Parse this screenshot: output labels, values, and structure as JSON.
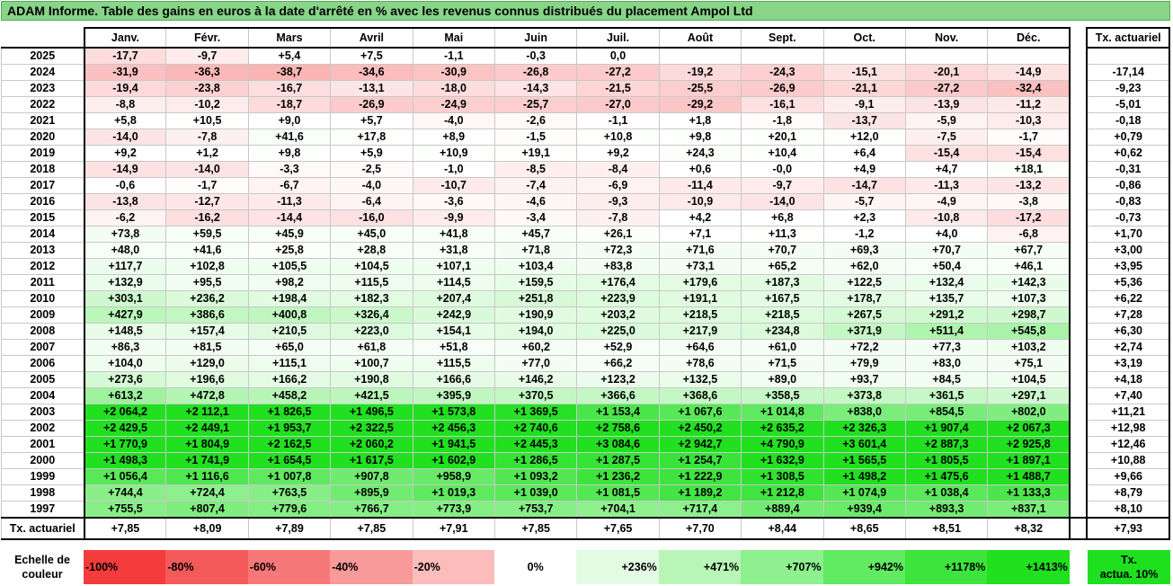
{
  "title": "ADAM Informe. Table des gains en euros à la date d'arrêté en % avec les revenus connus distribués du placement Ampol Ltd",
  "months": [
    "Janv.",
    "Févr.",
    "Mars",
    "Avril",
    "Mai",
    "Juin",
    "Juil.",
    "Août",
    "Sept.",
    "Oct.",
    "Nov.",
    "Déc."
  ],
  "rate_header": "Tx. actuariel",
  "rows": [
    {
      "year": "2025",
      "values": [
        "-17,7",
        "-9,7",
        "+5,4",
        "+7,5",
        "-1,1",
        "-0,3",
        "0,0",
        "",
        "",
        "",
        "",
        ""
      ],
      "rate": ""
    },
    {
      "year": "2024",
      "values": [
        "-31,9",
        "-36,3",
        "-38,7",
        "-34,6",
        "-30,9",
        "-26,8",
        "-27,2",
        "-19,2",
        "-24,3",
        "-15,1",
        "-20,1",
        "-14,9"
      ],
      "rate": "-17,14"
    },
    {
      "year": "2023",
      "values": [
        "-19,4",
        "-23,8",
        "-16,7",
        "-13,1",
        "-18,0",
        "-14,3",
        "-21,5",
        "-25,5",
        "-26,9",
        "-21,1",
        "-27,2",
        "-32,4"
      ],
      "rate": "-9,23"
    },
    {
      "year": "2022",
      "values": [
        "-8,8",
        "-10,2",
        "-18,7",
        "-26,9",
        "-24,9",
        "-25,7",
        "-27,0",
        "-29,2",
        "-16,1",
        "-9,1",
        "-13,9",
        "-11,2"
      ],
      "rate": "-5,01"
    },
    {
      "year": "2021",
      "values": [
        "+5,8",
        "+10,5",
        "+9,0",
        "+5,7",
        "-4,0",
        "-2,6",
        "-1,1",
        "+1,8",
        "-1,8",
        "-13,7",
        "-5,9",
        "-10,3"
      ],
      "rate": "-0,18"
    },
    {
      "year": "2020",
      "values": [
        "-14,0",
        "-7,8",
        "+41,6",
        "+17,8",
        "+8,9",
        "-1,5",
        "+10,8",
        "+9,8",
        "+20,1",
        "+12,0",
        "-7,5",
        "-1,7"
      ],
      "rate": "+0,79"
    },
    {
      "year": "2019",
      "values": [
        "+9,2",
        "+1,2",
        "+9,8",
        "+5,9",
        "+10,9",
        "+19,1",
        "+9,2",
        "+24,3",
        "+10,4",
        "+6,4",
        "-15,4",
        "-15,4"
      ],
      "rate": "+0,62"
    },
    {
      "year": "2018",
      "values": [
        "-14,9",
        "-14,0",
        "-3,3",
        "-2,5",
        "-1,0",
        "-8,5",
        "-8,4",
        "+0,6",
        "-0,0",
        "+4,9",
        "+4,7",
        "+18,1"
      ],
      "rate": "-0,31"
    },
    {
      "year": "2017",
      "values": [
        "-0,6",
        "-1,7",
        "-6,7",
        "-4,0",
        "-10,7",
        "-7,4",
        "-6,9",
        "-11,4",
        "-9,7",
        "-14,7",
        "-11,3",
        "-13,2"
      ],
      "rate": "-0,86"
    },
    {
      "year": "2016",
      "values": [
        "-13,8",
        "-12,7",
        "-11,3",
        "-6,4",
        "-3,6",
        "-4,6",
        "-9,3",
        "-10,9",
        "-14,0",
        "-5,7",
        "-4,9",
        "-3,8"
      ],
      "rate": "-0,83"
    },
    {
      "year": "2015",
      "values": [
        "-6,2",
        "-16,2",
        "-14,4",
        "-16,0",
        "-9,9",
        "-3,4",
        "-7,8",
        "+4,2",
        "+6,8",
        "+2,3",
        "-10,8",
        "-17,2"
      ],
      "rate": "-0,73"
    },
    {
      "year": "2014",
      "values": [
        "+73,8",
        "+59,5",
        "+45,9",
        "+45,0",
        "+41,8",
        "+45,7",
        "+26,1",
        "+7,1",
        "+11,3",
        "-1,2",
        "+4,0",
        "-6,8"
      ],
      "rate": "+1,70"
    },
    {
      "year": "2013",
      "values": [
        "+48,0",
        "+41,6",
        "+25,8",
        "+28,8",
        "+31,8",
        "+71,8",
        "+72,3",
        "+71,6",
        "+70,7",
        "+69,3",
        "+70,7",
        "+67,7"
      ],
      "rate": "+3,00"
    },
    {
      "year": "2012",
      "values": [
        "+117,7",
        "+102,8",
        "+105,5",
        "+104,5",
        "+107,1",
        "+103,4",
        "+83,8",
        "+73,1",
        "+65,2",
        "+62,0",
        "+50,4",
        "+46,1"
      ],
      "rate": "+3,95"
    },
    {
      "year": "2011",
      "values": [
        "+132,9",
        "+95,5",
        "+98,2",
        "+115,5",
        "+114,5",
        "+159,5",
        "+176,4",
        "+179,6",
        "+187,3",
        "+122,5",
        "+132,4",
        "+142,3"
      ],
      "rate": "+5,36"
    },
    {
      "year": "2010",
      "values": [
        "+303,1",
        "+236,2",
        "+198,4",
        "+182,3",
        "+207,4",
        "+251,8",
        "+223,9",
        "+191,1",
        "+167,5",
        "+178,7",
        "+135,7",
        "+107,3"
      ],
      "rate": "+6,22"
    },
    {
      "year": "2009",
      "values": [
        "+427,9",
        "+386,6",
        "+400,8",
        "+326,4",
        "+242,9",
        "+190,9",
        "+203,2",
        "+218,5",
        "+218,5",
        "+267,5",
        "+291,2",
        "+298,7"
      ],
      "rate": "+7,28"
    },
    {
      "year": "2008",
      "values": [
        "+148,5",
        "+157,4",
        "+210,5",
        "+223,0",
        "+154,1",
        "+194,0",
        "+225,0",
        "+217,9",
        "+234,8",
        "+371,9",
        "+511,4",
        "+545,8"
      ],
      "rate": "+6,30"
    },
    {
      "year": "2007",
      "values": [
        "+86,3",
        "+81,5",
        "+65,0",
        "+61,8",
        "+51,8",
        "+60,2",
        "+52,9",
        "+64,6",
        "+61,0",
        "+72,2",
        "+77,3",
        "+103,2"
      ],
      "rate": "+2,74"
    },
    {
      "year": "2006",
      "values": [
        "+104,0",
        "+129,0",
        "+115,1",
        "+100,7",
        "+115,5",
        "+77,0",
        "+66,2",
        "+78,6",
        "+71,5",
        "+79,9",
        "+83,0",
        "+75,1"
      ],
      "rate": "+3,19"
    },
    {
      "year": "2005",
      "values": [
        "+273,6",
        "+196,6",
        "+166,2",
        "+190,8",
        "+166,6",
        "+146,2",
        "+123,2",
        "+132,5",
        "+89,0",
        "+93,7",
        "+84,5",
        "+104,5"
      ],
      "rate": "+4,18"
    },
    {
      "year": "2004",
      "values": [
        "+613,2",
        "+472,8",
        "+458,2",
        "+421,5",
        "+395,9",
        "+370,5",
        "+366,6",
        "+368,6",
        "+358,5",
        "+373,8",
        "+361,5",
        "+297,1"
      ],
      "rate": "+7,40"
    },
    {
      "year": "2003",
      "values": [
        "+2 064,2",
        "+2 112,1",
        "+1 826,5",
        "+1 496,5",
        "+1 573,8",
        "+1 369,5",
        "+1 153,4",
        "+1 067,6",
        "+1 014,8",
        "+838,0",
        "+854,5",
        "+802,0"
      ],
      "rate": "+11,21"
    },
    {
      "year": "2002",
      "values": [
        "+2 429,5",
        "+2 449,1",
        "+1 953,7",
        "+2 322,5",
        "+2 456,3",
        "+2 740,6",
        "+2 758,6",
        "+2 450,2",
        "+2 635,2",
        "+2 326,3",
        "+1 907,4",
        "+2 067,3"
      ],
      "rate": "+12,98"
    },
    {
      "year": "2001",
      "values": [
        "+1 770,9",
        "+1 804,9",
        "+2 162,5",
        "+2 060,2",
        "+1 941,5",
        "+2 445,3",
        "+3 084,6",
        "+2 942,7",
        "+4 790,9",
        "+3 601,4",
        "+2 887,3",
        "+2 925,8"
      ],
      "rate": "+12,46"
    },
    {
      "year": "2000",
      "values": [
        "+1 498,3",
        "+1 741,9",
        "+1 654,5",
        "+1 617,5",
        "+1 602,9",
        "+1 286,5",
        "+1 287,5",
        "+1 254,7",
        "+1 632,9",
        "+1 565,5",
        "+1 805,5",
        "+1 897,1"
      ],
      "rate": "+10,88"
    },
    {
      "year": "1999",
      "values": [
        "+1 056,4",
        "+1 116,6",
        "+1 007,8",
        "+907,8",
        "+958,9",
        "+1 093,2",
        "+1 236,2",
        "+1 222,9",
        "+1 308,5",
        "+1 498,2",
        "+1 475,6",
        "+1 488,7"
      ],
      "rate": "+9,66"
    },
    {
      "year": "1998",
      "values": [
        "+744,4",
        "+724,4",
        "+763,5",
        "+895,9",
        "+1 019,3",
        "+1 039,0",
        "+1 081,5",
        "+1 189,2",
        "+1 212,8",
        "+1 074,9",
        "+1 038,4",
        "+1 133,3"
      ],
      "rate": "+8,79"
    },
    {
      "year": "1997",
      "values": [
        "+755,5",
        "+807,4",
        "+779,6",
        "+766,7",
        "+773,9",
        "+753,7",
        "+704,1",
        "+717,4",
        "+889,4",
        "+939,4",
        "+893,3",
        "+837,1"
      ],
      "rate": "+8,10"
    }
  ],
  "final_row": {
    "label": "Tx. actuariel",
    "values": [
      "+7,85",
      "+8,09",
      "+7,89",
      "+7,85",
      "+7,91",
      "+7,85",
      "+7,65",
      "+7,70",
      "+8,44",
      "+8,65",
      "+8,51",
      "+8,32"
    ],
    "rate": "+7,93"
  },
  "scale": {
    "label_line1": "Echelle de",
    "label_line2": "couleur",
    "cells": [
      {
        "label": "-100%",
        "color": "#f43c3c",
        "align": "left"
      },
      {
        "label": "-80%",
        "color": "#f55a5a",
        "align": "left"
      },
      {
        "label": "-60%",
        "color": "#f77878",
        "align": "left"
      },
      {
        "label": "-40%",
        "color": "#f99a9a",
        "align": "left"
      },
      {
        "label": "-20%",
        "color": "#fbbcbc",
        "align": "left"
      },
      {
        "label": "0%",
        "color": "#ffffff",
        "align": "center"
      },
      {
        "label": "+236%",
        "color": "#e2fbe2",
        "align": "right"
      },
      {
        "label": "+471%",
        "color": "#b8f6b8",
        "align": "right"
      },
      {
        "label": "+707%",
        "color": "#8ef08e",
        "align": "right"
      },
      {
        "label": "+942%",
        "color": "#62ea62",
        "align": "right"
      },
      {
        "label": "+1178%",
        "color": "#3ce43c",
        "align": "right"
      },
      {
        "label": "+1413%",
        "color": "#20e020",
        "align": "right"
      }
    ],
    "last_line1": "Tx.",
    "last_line2": "actua. 10%",
    "last_color": "#1ee01e"
  }
}
